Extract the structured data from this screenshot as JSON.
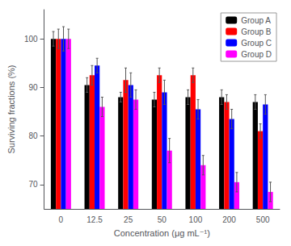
{
  "chart_data": {
    "type": "bar",
    "xlabel": "Concentration (μg mL⁻¹)",
    "ylabel": "Surviving fractions (%)",
    "categories": [
      "0",
      "12.5",
      "25",
      "50",
      "100",
      "200",
      "500"
    ],
    "series": [
      {
        "name": "Group A",
        "color": "#000000",
        "values": [
          100,
          90.5,
          88,
          87.5,
          88,
          88,
          87
        ],
        "errors": [
          1.5,
          1.5,
          1.0,
          1.5,
          1.5,
          1.5,
          1.5
        ]
      },
      {
        "name": "Group B",
        "color": "#ff0000",
        "values": [
          100,
          92.5,
          91.5,
          92.5,
          92.5,
          87,
          81
        ],
        "errors": [
          2.0,
          2.0,
          2.5,
          1.5,
          1.5,
          1.5,
          1.5
        ]
      },
      {
        "name": "Group C",
        "color": "#0000ff",
        "values": [
          100,
          94.5,
          90.5,
          89,
          85.5,
          83.5,
          86.5
        ],
        "errors": [
          2.5,
          1.5,
          2.5,
          2.5,
          2.0,
          2.0,
          2.0
        ]
      },
      {
        "name": "Group D",
        "color": "#ff00ff",
        "values": [
          100,
          86,
          87.5,
          77,
          74,
          70.5,
          68.5
        ],
        "errors": [
          2.0,
          2.0,
          2.0,
          2.5,
          2.0,
          2.0,
          2.0
        ]
      }
    ],
    "ylim": [
      65,
      106
    ],
    "yticks": [
      70,
      80,
      90,
      100
    ],
    "grid": false,
    "legend": "upper right"
  }
}
